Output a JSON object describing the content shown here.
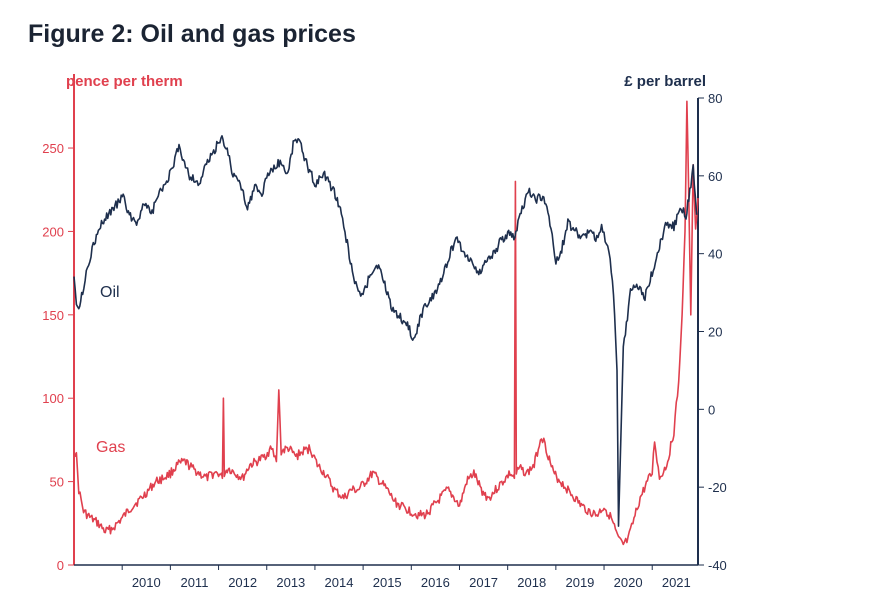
{
  "chart_data": {
    "type": "line",
    "title": "Figure 2: Oil and gas prices",
    "left_axis_label": "pence per therm",
    "right_axis_label": "£ per barrel",
    "left_ylim": [
      0,
      280
    ],
    "right_ylim": [
      -40,
      80
    ],
    "left_ticks": [
      "0",
      "50",
      "100",
      "150",
      "200",
      "250"
    ],
    "right_ticks": [
      "-40",
      "-20",
      "0",
      "20",
      "40",
      "60",
      "80"
    ],
    "x_ticks": [
      "2010",
      "2011",
      "2012",
      "2013",
      "2014",
      "2015",
      "2016",
      "2017",
      "2018",
      "2019",
      "2020",
      "2021"
    ],
    "xlim": [
      2009.0,
      2021.95
    ],
    "grid": false,
    "colors": {
      "oil": "#1e2f4d",
      "gas": "#e0404e",
      "title": "#1b2433"
    },
    "series": [
      {
        "name": "Oil",
        "axis": "right",
        "x": [
          2009.0,
          2009.05,
          2009.1,
          2009.18,
          2009.28,
          2009.4,
          2009.55,
          2009.7,
          2009.85,
          2010.0,
          2010.15,
          2010.3,
          2010.45,
          2010.6,
          2010.75,
          2010.9,
          2011.05,
          2011.18,
          2011.25,
          2011.4,
          2011.6,
          2011.75,
          2011.9,
          2012.05,
          2012.2,
          2012.3,
          2012.45,
          2012.6,
          2012.75,
          2012.9,
          2013.0,
          2013.15,
          2013.3,
          2013.42,
          2013.55,
          2013.65,
          2013.8,
          2014.0,
          2014.2,
          2014.4,
          2014.55,
          2014.65,
          2014.8,
          2014.9,
          2015.0,
          2015.15,
          2015.3,
          2015.45,
          2015.6,
          2015.75,
          2015.9,
          2016.05,
          2016.2,
          2016.35,
          2016.5,
          2016.65,
          2016.8,
          2016.95,
          2017.1,
          2017.25,
          2017.4,
          2017.55,
          2017.7,
          2017.85,
          2018.0,
          2018.15,
          2018.3,
          2018.45,
          2018.6,
          2018.75,
          2018.9,
          2019.0,
          2019.1,
          2019.25,
          2019.4,
          2019.55,
          2019.7,
          2019.85,
          2019.95,
          2020.05,
          2020.15,
          2020.22,
          2020.27,
          2020.3,
          2020.4,
          2020.55,
          2020.7,
          2020.85,
          2021.0,
          2021.15,
          2021.3,
          2021.45,
          2021.6,
          2021.7,
          2021.78,
          2021.85,
          2021.92
        ],
        "values": [
          35,
          28,
          26,
          30,
          37,
          42,
          47,
          50,
          52,
          55,
          50,
          48,
          53,
          50,
          55,
          58,
          62,
          68,
          65,
          60,
          58,
          63,
          66,
          70,
          66,
          60,
          58,
          52,
          57,
          55,
          60,
          62,
          64,
          60,
          68,
          70,
          64,
          58,
          60,
          56,
          50,
          44,
          34,
          30,
          29,
          35,
          37,
          32,
          26,
          24,
          22,
          18,
          24,
          28,
          30,
          34,
          40,
          44,
          40,
          38,
          35,
          38,
          40,
          43,
          45,
          44,
          52,
          56,
          54,
          55,
          46,
          38,
          40,
          48,
          46,
          44,
          46,
          44,
          47,
          43,
          36,
          25,
          10,
          -30,
          16,
          30,
          32,
          29,
          35,
          42,
          48,
          47,
          52,
          50,
          56,
          62,
          50
        ]
      },
      {
        "name": "Gas",
        "axis": "left",
        "x": [
          2009.0,
          2009.05,
          2009.1,
          2009.2,
          2009.35,
          2009.5,
          2009.65,
          2009.8,
          2010.0,
          2010.2,
          2010.4,
          2010.55,
          2010.7,
          2010.85,
          2011.0,
          2011.15,
          2011.3,
          2011.45,
          2011.6,
          2011.75,
          2011.9,
          2012.0,
          2012.08,
          2012.1,
          2012.12,
          2012.2,
          2012.35,
          2012.5,
          2012.65,
          2012.8,
          2012.95,
          2013.1,
          2013.2,
          2013.25,
          2013.3,
          2013.45,
          2013.6,
          2013.75,
          2013.9,
          2014.05,
          2014.2,
          2014.4,
          2014.6,
          2014.75,
          2014.9,
          2015.05,
          2015.2,
          2015.35,
          2015.5,
          2015.65,
          2015.8,
          2016.0,
          2016.15,
          2016.3,
          2016.45,
          2016.6,
          2016.75,
          2016.9,
          2017.0,
          2017.15,
          2017.3,
          2017.45,
          2017.6,
          2017.75,
          2017.9,
          2018.05,
          2018.14,
          2018.16,
          2018.18,
          2018.25,
          2018.4,
          2018.55,
          2018.7,
          2018.8,
          2018.95,
          2019.1,
          2019.25,
          2019.4,
          2019.55,
          2019.7,
          2019.85,
          2020.0,
          2020.15,
          2020.3,
          2020.4,
          2020.5,
          2020.6,
          2020.75,
          2020.9,
          2021.0,
          2021.05,
          2021.15,
          2021.3,
          2021.45,
          2021.55,
          2021.62,
          2021.68,
          2021.72,
          2021.76,
          2021.8,
          2021.85,
          2021.9,
          2021.95
        ],
        "values": [
          70,
          65,
          45,
          32,
          28,
          25,
          20,
          22,
          28,
          35,
          40,
          45,
          50,
          52,
          55,
          60,
          62,
          58,
          55,
          52,
          55,
          55,
          52,
          100,
          55,
          58,
          55,
          52,
          60,
          62,
          65,
          70,
          62,
          105,
          68,
          70,
          65,
          68,
          70,
          60,
          55,
          45,
          40,
          45,
          45,
          50,
          55,
          50,
          45,
          38,
          35,
          32,
          30,
          30,
          35,
          40,
          45,
          40,
          35,
          50,
          55,
          45,
          40,
          45,
          50,
          55,
          52,
          230,
          55,
          58,
          55,
          60,
          78,
          70,
          55,
          50,
          45,
          40,
          35,
          32,
          30,
          35,
          28,
          15,
          12,
          15,
          25,
          40,
          50,
          55,
          75,
          52,
          60,
          80,
          110,
          150,
          200,
          278,
          220,
          150,
          240,
          200,
          220
        ]
      }
    ],
    "annotations": [
      {
        "text": "Oil",
        "series": "Oil"
      },
      {
        "text": "Gas",
        "series": "Gas"
      }
    ]
  }
}
